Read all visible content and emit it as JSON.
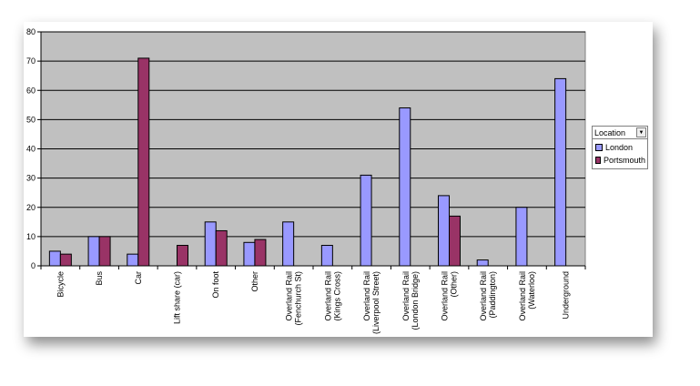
{
  "chart_data": {
    "type": "bar",
    "categories": [
      "Bicycle",
      "Bus",
      "Car",
      "Lift share (car)",
      "On foot",
      "Other",
      "Overland Rail\n(Fenchurch St)",
      "Overland Rail\n(Kings Cross)",
      "Overland Rail\n(Liverpool Street)",
      "Overland Rail\n(London Bridge)",
      "Overland Rail\n(Other)",
      "Overland Rail\n(Paddington)",
      "Overland Rail\n(Waterloo)",
      "Underground"
    ],
    "series": [
      {
        "name": "London",
        "color": "#9999ff",
        "values": [
          5,
          10,
          4,
          0,
          15,
          8,
          15,
          7,
          31,
          54,
          24,
          2,
          20,
          64
        ]
      },
      {
        "name": "Portsmouth",
        "color": "#993366",
        "values": [
          4,
          10,
          71,
          7,
          12,
          9,
          0,
          0,
          0,
          0,
          17,
          0,
          0,
          0
        ]
      }
    ],
    "ylim": [
      0,
      80
    ],
    "yticks": [
      0,
      10,
      20,
      30,
      40,
      50,
      60,
      70,
      80
    ],
    "plot_background": "#c0c0c0",
    "grid": true,
    "legend_position": "right"
  },
  "legend": {
    "title": "Location",
    "dropdown_icon": "chevron-down-icon"
  }
}
